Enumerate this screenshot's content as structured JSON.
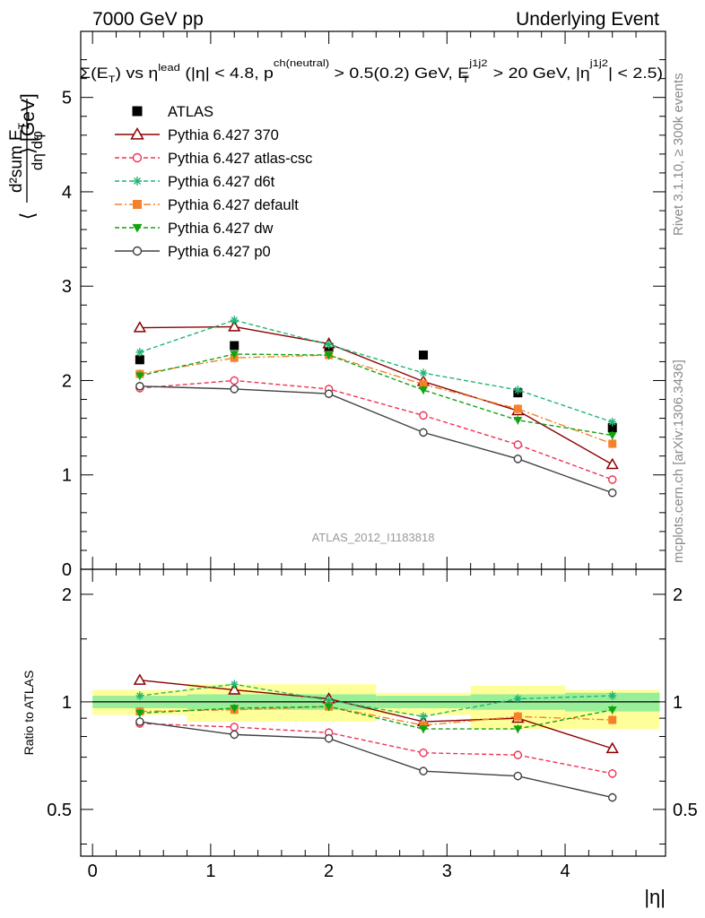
{
  "header": {
    "left": "7000 GeV pp",
    "right": "Underlying Event"
  },
  "plot_title": {
    "part1": "Σ(E",
    "sub_T": "T",
    "part2": ") vs η",
    "sup_lead": "lead",
    "part3": " (|η| < 4.8, p",
    "sup_ch": "ch(neutral)",
    "part4": " > 0.5(0.2) GeV, E",
    "sup_j1j2a": "j1j2",
    "sub_T2": "T",
    "part5": " > 20 GeV, |η",
    "sup_j1j2b": "j1j2",
    "part6": "| < 2.5)"
  },
  "side_labels": {
    "rivet": "Rivet 3.1.10, ≥ 300k events",
    "mcplots": "mcplots.cern.ch [arXiv:1306.3436]"
  },
  "watermark": "ATLAS_2012_I1183818",
  "axis_labels": {
    "ylabel_main_open": "⟨",
    "ylabel_main_num": "d²sum E",
    "ylabel_main_num_sub": "T",
    "ylabel_main_den": "dη dφ",
    "ylabel_main_close": "⟩ [GeV]",
    "ylabel_ratio": "Ratio to ATLAS",
    "xlabel": "|η|"
  },
  "chart_data": [
    {
      "type": "scatter",
      "panel": "main",
      "xlim": [
        -0.1,
        4.85
      ],
      "ylim": [
        0,
        5.7
      ],
      "yticks": [
        0,
        1,
        2,
        3,
        4,
        5
      ],
      "ytick_labels": [
        "0",
        "1",
        "2",
        "3",
        "4",
        "5"
      ],
      "x": [
        0.4,
        1.2,
        2.0,
        2.8,
        3.6,
        4.4
      ],
      "series": [
        {
          "name": "ATLAS",
          "style": "data",
          "color": "#000000",
          "marker": "square-filled",
          "values": [
            2.22,
            2.37,
            2.35,
            2.27,
            1.87,
            1.5
          ]
        },
        {
          "name": "Pythia 6.427 370",
          "style": "solid",
          "color": "#8b0000",
          "marker": "triangle-open",
          "values": [
            2.56,
            2.57,
            2.39,
            1.99,
            1.68,
            1.11
          ]
        },
        {
          "name": "Pythia 6.427 atlas-csc",
          "style": "dashed",
          "color": "#ee3355",
          "marker": "circle-open",
          "values": [
            1.92,
            2.0,
            1.91,
            1.63,
            1.32,
            0.95
          ]
        },
        {
          "name": "Pythia 6.427 d6t",
          "style": "dashed",
          "color": "#22b573",
          "marker": "star",
          "values": [
            2.3,
            2.64,
            2.38,
            2.08,
            1.9,
            1.56
          ]
        },
        {
          "name": "Pythia 6.427 default",
          "style": "dashdot",
          "color": "#f5822a",
          "marker": "square-filled",
          "values": [
            2.07,
            2.24,
            2.27,
            1.96,
            1.7,
            1.33
          ]
        },
        {
          "name": "Pythia 6.427 dw",
          "style": "dashed",
          "color": "#11a311",
          "marker": "triangle-down-filled",
          "values": [
            2.05,
            2.28,
            2.27,
            1.9,
            1.58,
            1.42
          ]
        },
        {
          "name": "Pythia 6.427 p0",
          "style": "solid",
          "color": "#404040",
          "marker": "circle-open",
          "values": [
            1.94,
            1.91,
            1.86,
            1.45,
            1.17,
            0.81
          ]
        }
      ]
    },
    {
      "type": "line",
      "panel": "ratio",
      "xlim": [
        -0.1,
        4.85
      ],
      "ylim": [
        0.37,
        2.35
      ],
      "yscale": "log",
      "yticks": [
        0.5,
        1,
        2
      ],
      "ytick_labels": [
        "0.5",
        "1",
        "2"
      ],
      "xticks": [
        0,
        1,
        2,
        3,
        4
      ],
      "xtick_labels": [
        "0",
        "1",
        "2",
        "3",
        "4"
      ],
      "bins": [
        [
          0.0,
          0.8
        ],
        [
          0.8,
          1.6
        ],
        [
          1.6,
          2.4
        ],
        [
          2.4,
          3.2
        ],
        [
          3.2,
          4.0
        ],
        [
          4.0,
          4.8
        ]
      ],
      "band_stat": [
        [
          0.96,
          1.04
        ],
        [
          0.95,
          1.05
        ],
        [
          0.95,
          1.05
        ],
        [
          0.96,
          1.04
        ],
        [
          0.95,
          1.05
        ],
        [
          0.94,
          1.06
        ]
      ],
      "band_total": [
        [
          0.92,
          1.08
        ],
        [
          0.88,
          1.12
        ],
        [
          0.88,
          1.12
        ],
        [
          0.92,
          1.06
        ],
        [
          0.84,
          1.11
        ],
        [
          0.84,
          1.08
        ]
      ],
      "x": [
        0.4,
        1.2,
        2.0,
        2.8,
        3.6,
        4.4
      ],
      "series": [
        {
          "name": "Pythia 6.427 370",
          "values": [
            1.15,
            1.08,
            1.02,
            0.88,
            0.9,
            0.74
          ]
        },
        {
          "name": "Pythia 6.427 atlas-csc",
          "values": [
            0.87,
            0.85,
            0.82,
            0.72,
            0.71,
            0.63
          ]
        },
        {
          "name": "Pythia 6.427 d6t",
          "values": [
            1.04,
            1.12,
            1.01,
            0.91,
            1.02,
            1.04
          ]
        },
        {
          "name": "Pythia 6.427 default",
          "values": [
            0.94,
            0.95,
            0.97,
            0.86,
            0.91,
            0.89
          ]
        },
        {
          "name": "Pythia 6.427 dw",
          "values": [
            0.93,
            0.96,
            0.97,
            0.84,
            0.84,
            0.95
          ]
        },
        {
          "name": "Pythia 6.427 p0",
          "values": [
            0.88,
            0.81,
            0.79,
            0.64,
            0.62,
            0.54
          ]
        }
      ]
    }
  ]
}
